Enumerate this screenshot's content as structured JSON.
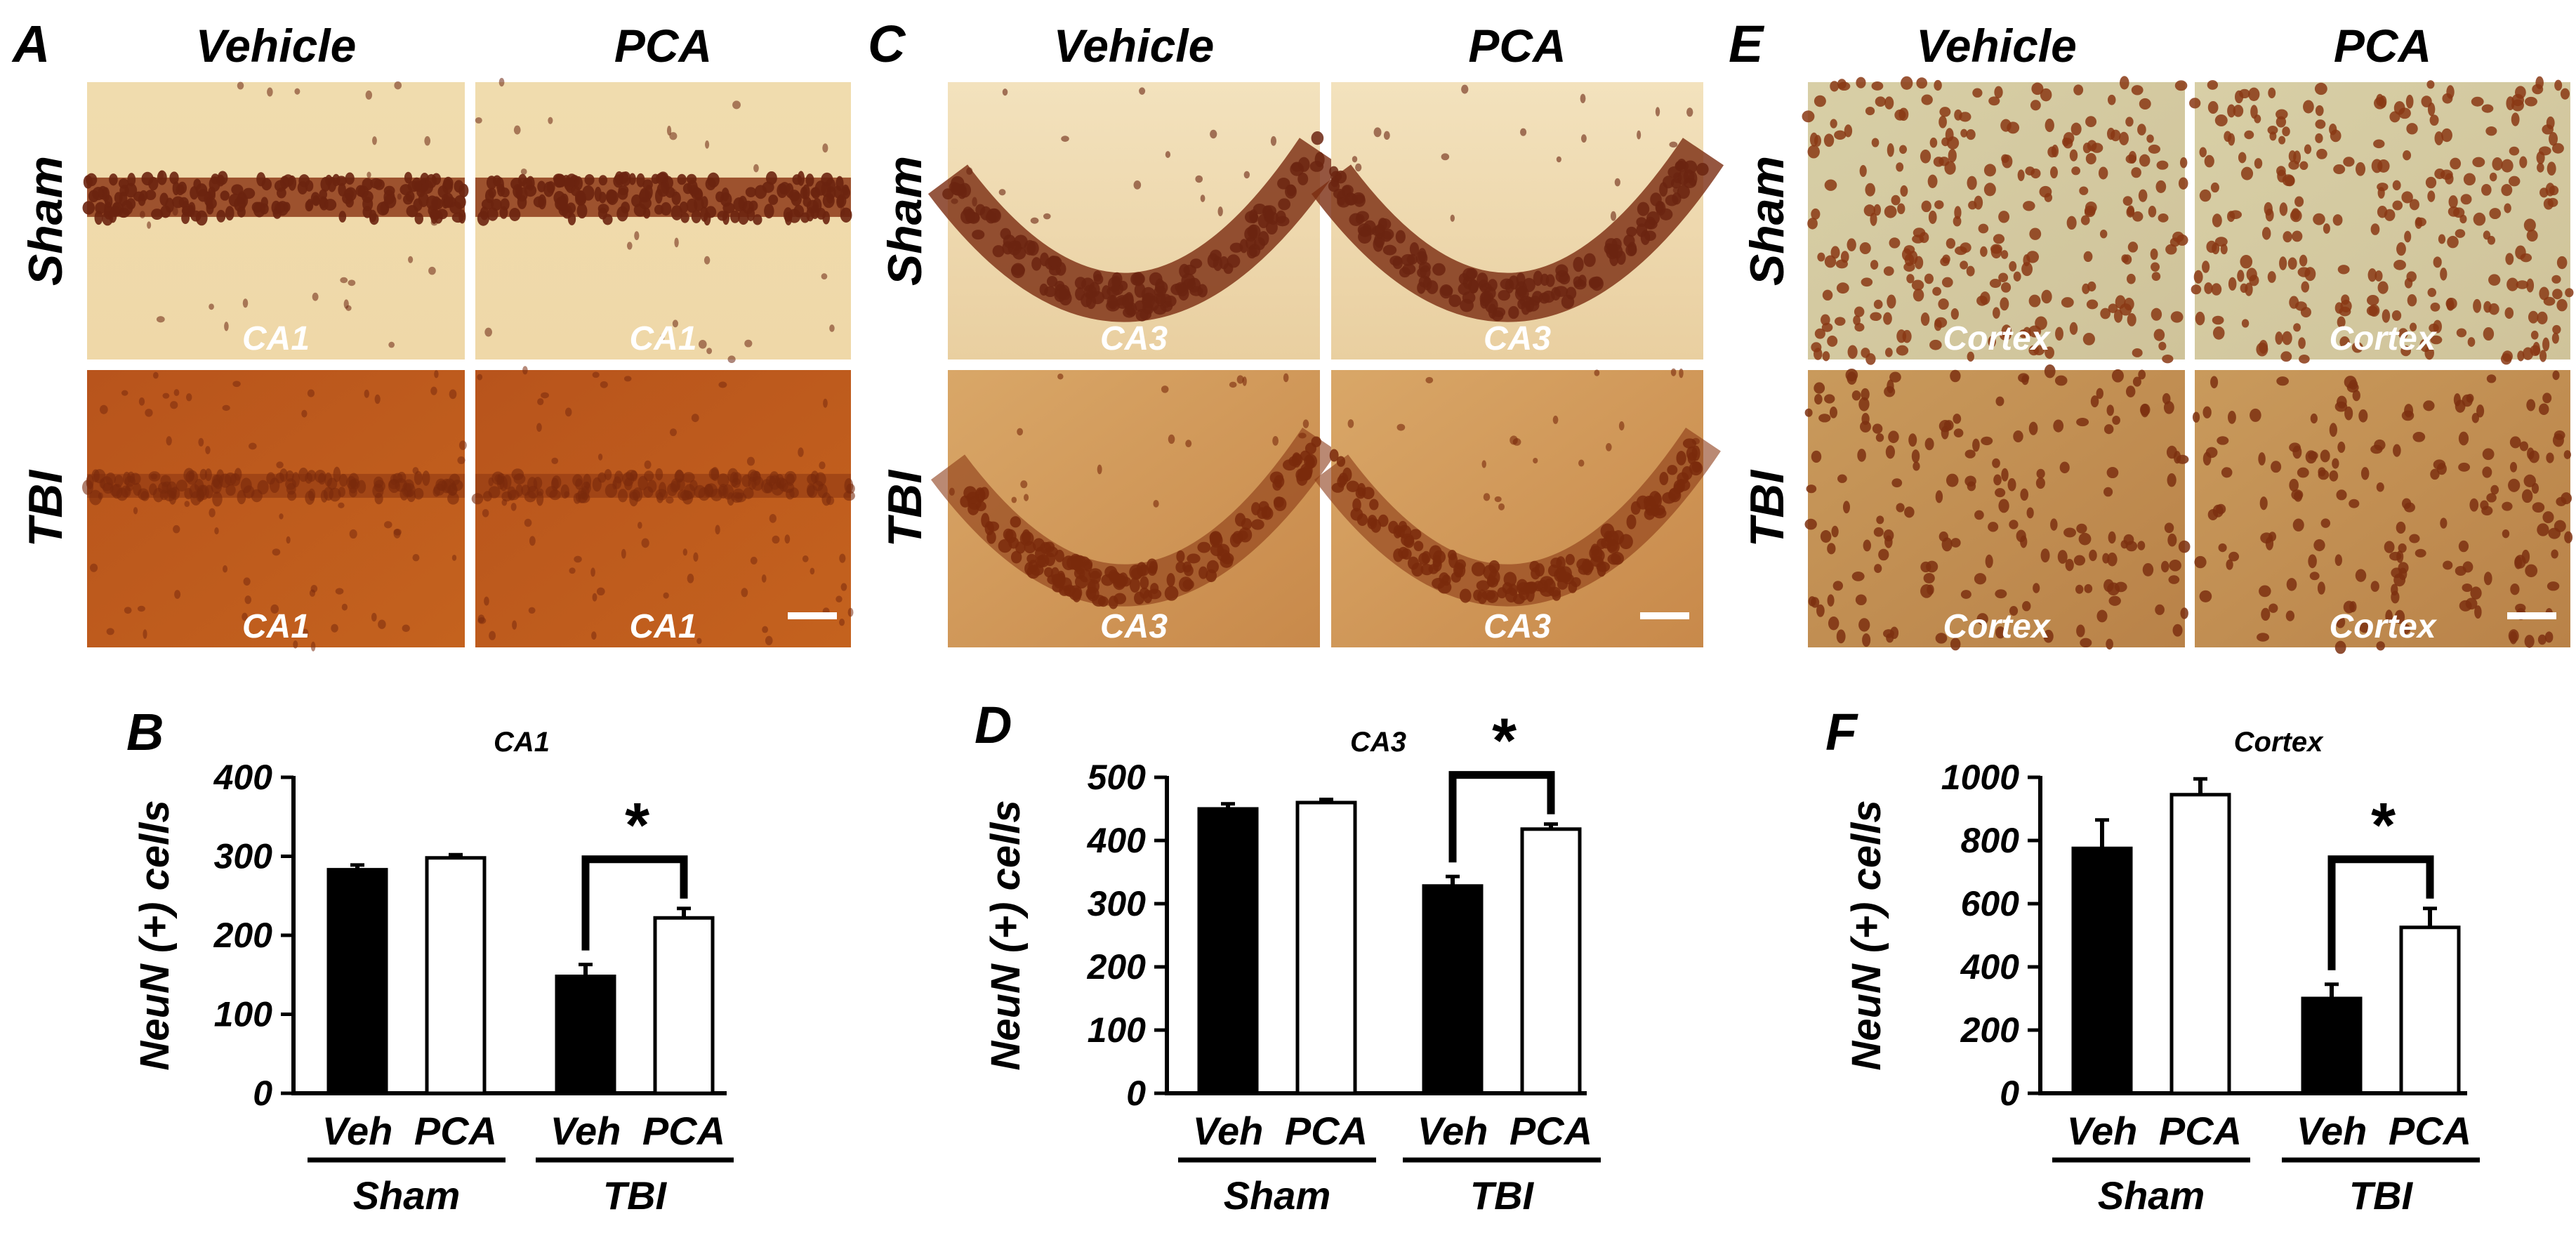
{
  "figure": {
    "panels": [
      {
        "letter": "A",
        "col_labels": [
          "Vehicle",
          "PCA"
        ],
        "row_labels": [
          "Sham",
          "TBI"
        ],
        "region": "CA1",
        "scale_bar": true
      },
      {
        "letter": "C",
        "col_labels": [
          "Vehicle",
          "PCA"
        ],
        "row_labels": [
          "Sham",
          "TBI"
        ],
        "region": "CA3",
        "scale_bar": true
      },
      {
        "letter": "E",
        "col_labels": [
          "Vehicle",
          "PCA"
        ],
        "row_labels": [
          "Sham",
          "TBI"
        ],
        "region": "Cortex",
        "scale_bar": true
      }
    ],
    "colors": {
      "veh_bar": "#000000",
      "pca_bar": "#ffffff",
      "stain_dark": "#6b2410",
      "stain_light": "#f1ddb1"
    }
  },
  "chart_data": [
    {
      "letter": "B",
      "type": "bar",
      "title": "CA1",
      "ylabel": "NeuN (+) cells",
      "ylim": [
        0,
        400
      ],
      "yticks": [
        0,
        100,
        200,
        300,
        400
      ],
      "categories": [
        "Veh",
        "PCA",
        "Veh",
        "PCA"
      ],
      "groups": [
        "Sham",
        "TBI"
      ],
      "values": [
        283,
        298,
        148,
        222
      ],
      "errors": [
        6,
        4,
        15,
        12
      ],
      "significance": {
        "label": "*",
        "between": [
          2,
          3
        ]
      }
    },
    {
      "letter": "D",
      "type": "bar",
      "title": "CA3",
      "ylabel": "NeuN (+) cells",
      "ylim": [
        0,
        500
      ],
      "yticks": [
        0,
        100,
        200,
        300,
        400,
        500
      ],
      "categories": [
        "Veh",
        "PCA",
        "Veh",
        "PCA"
      ],
      "groups": [
        "Sham",
        "TBI"
      ],
      "values": [
        450,
        460,
        328,
        418
      ],
      "errors": [
        8,
        5,
        15,
        8
      ],
      "significance": {
        "label": "*",
        "between": [
          2,
          3
        ]
      }
    },
    {
      "letter": "F",
      "type": "bar",
      "title": "Cortex",
      "ylabel": "NeuN (+) cells",
      "ylim": [
        0,
        1000
      ],
      "yticks": [
        0,
        200,
        400,
        600,
        800,
        1000
      ],
      "categories": [
        "Veh",
        "PCA",
        "Veh",
        "PCA"
      ],
      "groups": [
        "Sham",
        "TBI"
      ],
      "values": [
        775,
        945,
        300,
        525
      ],
      "errors": [
        90,
        50,
        45,
        60
      ],
      "significance": {
        "label": "*",
        "between": [
          2,
          3
        ]
      }
    }
  ]
}
